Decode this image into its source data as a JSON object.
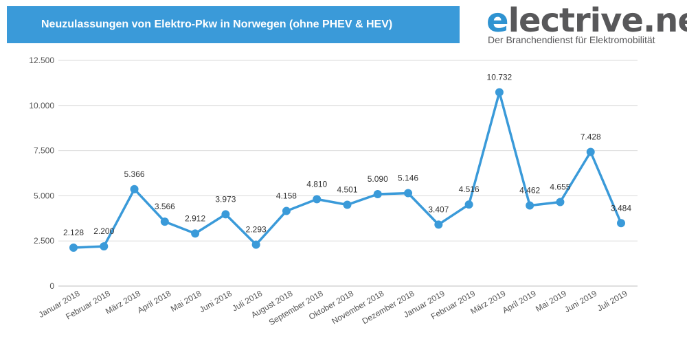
{
  "header": {
    "title": "Neuzulassungen von Elektro-Pkw in Norwegen (ohne PHEV & HEV)"
  },
  "logo": {
    "wordmark_first": "e",
    "wordmark_rest": "lectrive.net",
    "tagline": "Der Branchendienst für Elektromobilität"
  },
  "colors": {
    "accent": "#3a9ad9",
    "line": "#3a9ad9",
    "grid": "#d9d9d9"
  },
  "chart_data": {
    "type": "line",
    "title": "Neuzulassungen von Elektro-Pkw in Norwegen (ohne PHEV & HEV)",
    "xlabel": "",
    "ylabel": "",
    "ylim": [
      0,
      12500
    ],
    "yticks": [
      0,
      2500,
      5000,
      7500,
      10000,
      12500
    ],
    "ytick_labels": [
      "0",
      "2.500",
      "5.000",
      "7.500",
      "10.000",
      "12.500"
    ],
    "grid": true,
    "legend": "none",
    "categories": [
      "Januar 2018",
      "Februar 2018",
      "März 2018",
      "April 2018",
      "Mai 2018",
      "Juni 2018",
      "Juli 2018",
      "August 2018",
      "September 2018",
      "Oktober 2018",
      "November 2018",
      "Dezember 2018",
      "Januar 2019",
      "Februar 2019",
      "März 2019",
      "April 2019",
      "Mai 2019",
      "Juni 2019",
      "Juli 2019"
    ],
    "series": [
      {
        "values": [
          2128,
          2200,
          5366,
          3566,
          2912,
          3973,
          2293,
          4158,
          4810,
          4501,
          5090,
          5146,
          3407,
          4516,
          10732,
          4462,
          4655,
          7428,
          3484
        ],
        "labels": [
          "2.128",
          "2.200",
          "5.366",
          "3.566",
          "2.912",
          "3.973",
          "2.293",
          "4.158",
          "4.810",
          "4.501",
          "5.090",
          "5.146",
          "3.407",
          "4.516",
          "10.732",
          "4.462",
          "4.655",
          "7.428",
          "3.484"
        ]
      }
    ]
  }
}
